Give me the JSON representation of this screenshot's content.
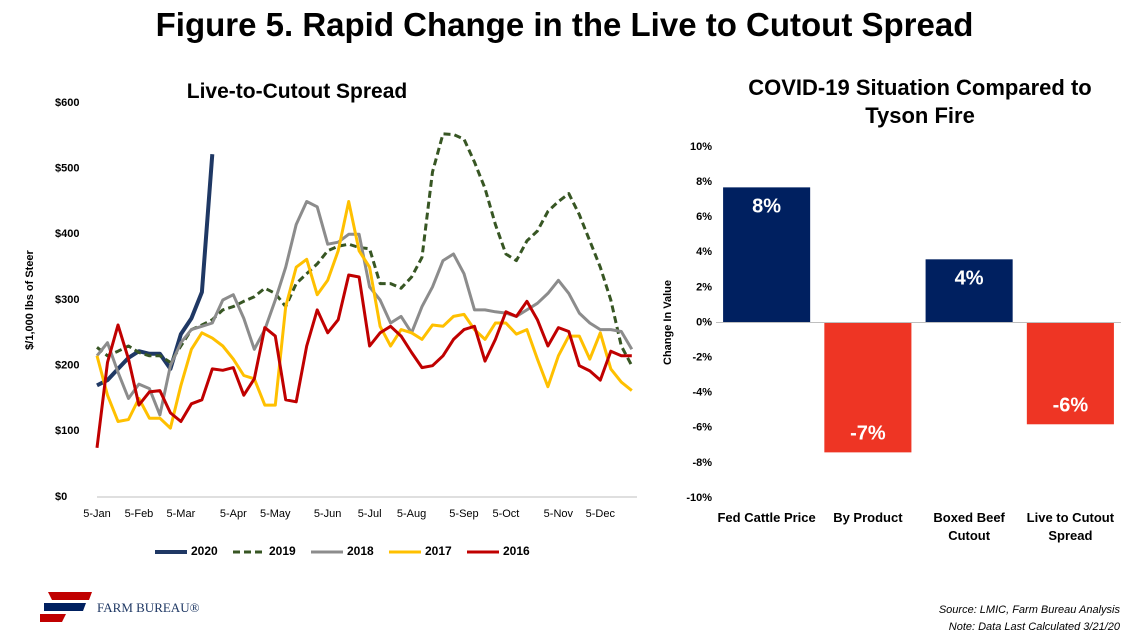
{
  "title": "Figure 5. Rapid Change in the Live to Cutout Spread",
  "chart_data": [
    {
      "type": "line",
      "title": "Live-to-Cutout Spread",
      "ylabel": "$/1,000 lbs of Steer",
      "categories": [
        "5-Jan",
        null,
        null,
        null,
        "5-Feb",
        null,
        null,
        null,
        "5-Mar",
        null,
        null,
        null,
        null,
        "5-Apr",
        null,
        null,
        null,
        "5-May",
        null,
        null,
        null,
        null,
        "5-Jun",
        null,
        null,
        null,
        "5-Jul",
        null,
        null,
        null,
        "5-Aug",
        null,
        null,
        null,
        null,
        "5-Sep",
        null,
        null,
        null,
        "5-Oct",
        null,
        null,
        null,
        null,
        "5-Nov",
        null,
        null,
        null,
        "5-Dec",
        null,
        null,
        null
      ],
      "ylim": [
        0,
        600
      ],
      "yticks": [
        {
          "value": 0,
          "label": "$0"
        },
        {
          "value": 100,
          "label": "$100"
        },
        {
          "value": 200,
          "label": "$200"
        },
        {
          "value": 300,
          "label": "$300"
        },
        {
          "value": 400,
          "label": "$400"
        },
        {
          "value": 500,
          "label": "$500"
        },
        {
          "value": 600,
          "label": "$600"
        }
      ],
      "grid": false,
      "legend": "bottom",
      "series": [
        {
          "name": "2020",
          "color": "#1f3864",
          "dash": false,
          "width": 4,
          "values": [
            170,
            178,
            195,
            212,
            222,
            218,
            218,
            195,
            248,
            272,
            312,
            522,
            null,
            null,
            null,
            null,
            null,
            null,
            null,
            null,
            null,
            null,
            null,
            null,
            null,
            null,
            null,
            null,
            null,
            null,
            null,
            null,
            null,
            null,
            null,
            null,
            null,
            null,
            null,
            null,
            null,
            null,
            null,
            null,
            null,
            null,
            null,
            null,
            null,
            null,
            null,
            null
          ]
        },
        {
          "name": "2019",
          "color": "#375623",
          "dash": true,
          "width": 3,
          "values": [
            228,
            215,
            222,
            230,
            220,
            215,
            215,
            205,
            230,
            255,
            262,
            270,
            285,
            290,
            298,
            305,
            318,
            310,
            290,
            325,
            340,
            355,
            375,
            382,
            385,
            380,
            378,
            325,
            325,
            318,
            335,
            365,
            495,
            553,
            552,
            545,
            510,
            470,
            415,
            370,
            360,
            390,
            405,
            435,
            450,
            462,
            430,
            390,
            350,
            300,
            230,
            200
          ]
        },
        {
          "name": "2018",
          "color": "#8c8c8c",
          "dash": false,
          "width": 3,
          "values": [
            215,
            235,
            190,
            150,
            172,
            165,
            125,
            200,
            235,
            255,
            260,
            265,
            300,
            308,
            272,
            225,
            255,
            300,
            350,
            415,
            450,
            442,
            385,
            388,
            400,
            400,
            320,
            300,
            265,
            275,
            250,
            290,
            320,
            360,
            370,
            340,
            285,
            285,
            282,
            280,
            275,
            285,
            295,
            310,
            330,
            310,
            280,
            265,
            255,
            255,
            252,
            225
          ]
        },
        {
          "name": "2017",
          "color": "#ffc000",
          "dash": false,
          "width": 3,
          "values": [
            215,
            155,
            115,
            118,
            150,
            120,
            120,
            105,
            170,
            225,
            250,
            242,
            230,
            210,
            185,
            180,
            140,
            140,
            290,
            350,
            362,
            308,
            330,
            375,
            450,
            375,
            350,
            260,
            230,
            255,
            250,
            240,
            262,
            260,
            275,
            278,
            255,
            240,
            265,
            265,
            248,
            255,
            210,
            168,
            215,
            245,
            245,
            210,
            250,
            195,
            175,
            162
          ]
        },
        {
          "name": "2016",
          "color": "#c00000",
          "dash": false,
          "width": 3,
          "values": [
            75,
            205,
            262,
            210,
            140,
            160,
            162,
            128,
            115,
            142,
            148,
            195,
            193,
            197,
            155,
            180,
            258,
            245,
            148,
            145,
            230,
            285,
            250,
            270,
            338,
            335,
            230,
            250,
            260,
            245,
            220,
            197,
            200,
            215,
            240,
            255,
            260,
            207,
            240,
            282,
            275,
            298,
            270,
            230,
            258,
            252,
            200,
            192,
            178,
            222,
            215,
            215
          ]
        }
      ]
    },
    {
      "type": "bar",
      "title": "COVID-19 Situation Compared to Tyson Fire",
      "ylabel": "Change In Value",
      "categories": [
        "Fed Cattle Price",
        "By Product",
        "Boxed Beef Cutout",
        "Live to Cutout Spread"
      ],
      "values": [
        7.7,
        -7.4,
        3.6,
        -5.8
      ],
      "value_labels": [
        "8%",
        "-7%",
        "4%",
        "-6%"
      ],
      "colors": [
        "#002060",
        "#ee3524",
        "#002060",
        "#ee3524"
      ],
      "ylim": [
        -10,
        10
      ],
      "yticks": [
        {
          "value": -10,
          "label": "-10%"
        },
        {
          "value": -8,
          "label": "-8%"
        },
        {
          "value": -6,
          "label": "-6%"
        },
        {
          "value": -4,
          "label": "-4%"
        },
        {
          "value": -2,
          "label": "-2%"
        },
        {
          "value": 0,
          "label": "0%"
        },
        {
          "value": 2,
          "label": "2%"
        },
        {
          "value": 4,
          "label": "4%"
        },
        {
          "value": 6,
          "label": "6%"
        },
        {
          "value": 8,
          "label": "8%"
        },
        {
          "value": 10,
          "label": "10%"
        }
      ],
      "grid": false
    }
  ],
  "footer": {
    "logo": "FARM BUREAU®",
    "source": "Source: LMIC, Farm Bureau Analysis",
    "note": "Note: Data Last Calculated 3/21/20"
  }
}
